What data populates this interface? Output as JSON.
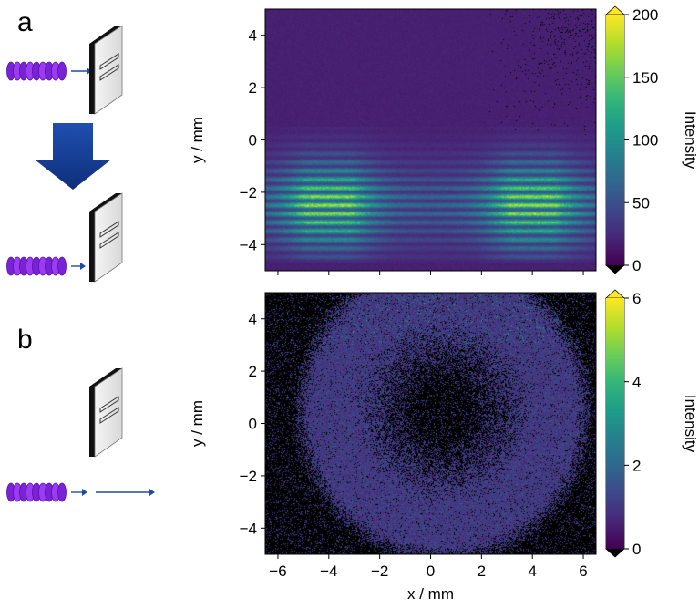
{
  "figure": {
    "panel_a_label": "a",
    "panel_b_label": "b",
    "colormap": [
      "#440154",
      "#482878",
      "#3e4989",
      "#31688e",
      "#26828e",
      "#1f9e89",
      "#35b779",
      "#6ece58",
      "#b5de2b",
      "#fde725"
    ],
    "colorbar_under_color": "#000000",
    "colorbar_over_color": "#fde725",
    "arrow_color": "#1f4aa8",
    "big_arrow_color": "#1a3d9c",
    "atom_beam_color": "#8b2be2"
  },
  "chart_data": [
    {
      "type": "heatmap",
      "panel": "a",
      "ylabel": "y / mm",
      "xlim": [
        -6.5,
        6.5
      ],
      "ylim": [
        -5,
        5
      ],
      "xticks": [
        -6,
        -4,
        -2,
        0,
        2,
        4,
        6
      ],
      "yticks": [
        -4,
        -2,
        0,
        2,
        4
      ],
      "ytick_labels": [
        "−4",
        "−2",
        "0",
        "2",
        "4"
      ],
      "show_xtick_labels": false,
      "colorbar": {
        "label": "Intensity",
        "min": 0,
        "max": 200,
        "ticks": [
          0,
          50,
          100,
          150,
          200
        ],
        "tick_labels": [
          "0",
          "50",
          "100",
          "150",
          "200"
        ],
        "extend": "both"
      },
      "description_of_pattern": "horizontal interference fringes between y≈-4.7 and y≈0.5, brightest at x≈-4 and x≈4, y≈-2.5",
      "fringes": {
        "y_range": [
          -4.7,
          0.5
        ],
        "period": 0.33,
        "peak_x": [
          -4,
          4
        ],
        "peak_y": -2.5,
        "peak_value": 140,
        "background": 15
      }
    },
    {
      "type": "heatmap",
      "panel": "b",
      "xlabel": "x / mm",
      "ylabel": "y / mm",
      "xlim": [
        -6.5,
        6.5
      ],
      "ylim": [
        -5,
        5
      ],
      "xticks": [
        -6,
        -4,
        -2,
        0,
        2,
        4,
        6
      ],
      "xtick_labels": [
        "−6",
        "−4",
        "−2",
        "0",
        "2",
        "4",
        "6"
      ],
      "yticks": [
        -4,
        -2,
        0,
        2,
        4
      ],
      "ytick_labels": [
        "−4",
        "−2",
        "0",
        "2",
        "4"
      ],
      "colorbar": {
        "label": "Intensity",
        "min": 0,
        "max": 6,
        "ticks": [
          0,
          2,
          4,
          6
        ],
        "tick_labels": [
          "0",
          "2",
          "4",
          "6"
        ],
        "extend": "both"
      },
      "description_of_pattern": "noisy ring-shaped distribution, dark center near (0.5, 0.5), brighter speckle toward top",
      "ring": {
        "center": [
          0.5,
          0.5
        ],
        "inner_radius": 2.5,
        "outer_radius": 6,
        "peak_value": 1.5
      }
    }
  ]
}
